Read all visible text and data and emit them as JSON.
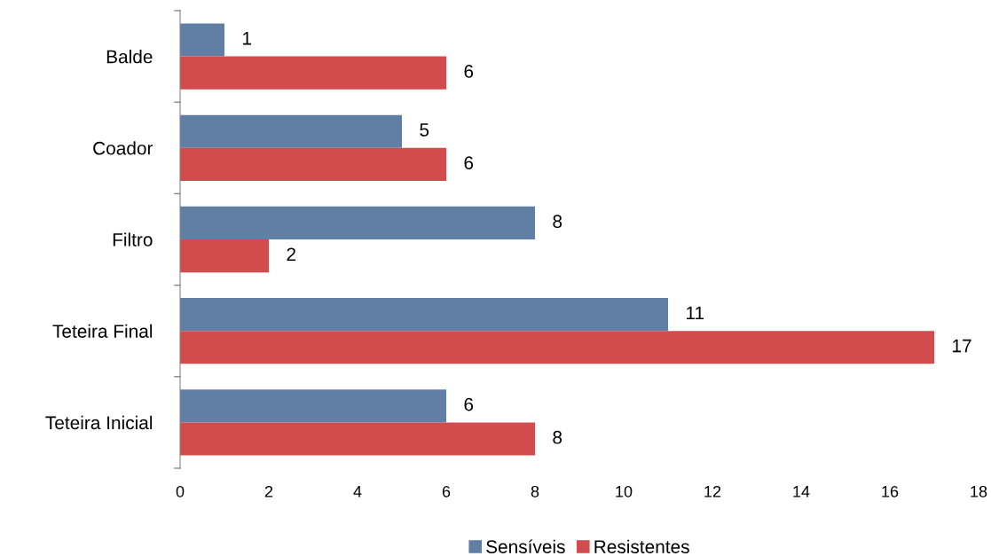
{
  "chart_data": {
    "type": "bar",
    "orientation": "horizontal",
    "categories": [
      "Balde",
      "Coador",
      "Filtro",
      "Teteira Final",
      "Teteira Inicial"
    ],
    "series": [
      {
        "name": "Sensíveis",
        "color": "#617fa5",
        "values": [
          1,
          5,
          8,
          11,
          6
        ]
      },
      {
        "name": "Resistentes",
        "color": "#d24b4d",
        "values": [
          6,
          6,
          2,
          17,
          8
        ]
      }
    ],
    "xlim": [
      0,
      18
    ],
    "xticks": [
      0,
      2,
      4,
      6,
      8,
      10,
      12,
      14,
      16,
      18
    ],
    "data_labels": true,
    "grid": false,
    "legend": "bottom"
  }
}
